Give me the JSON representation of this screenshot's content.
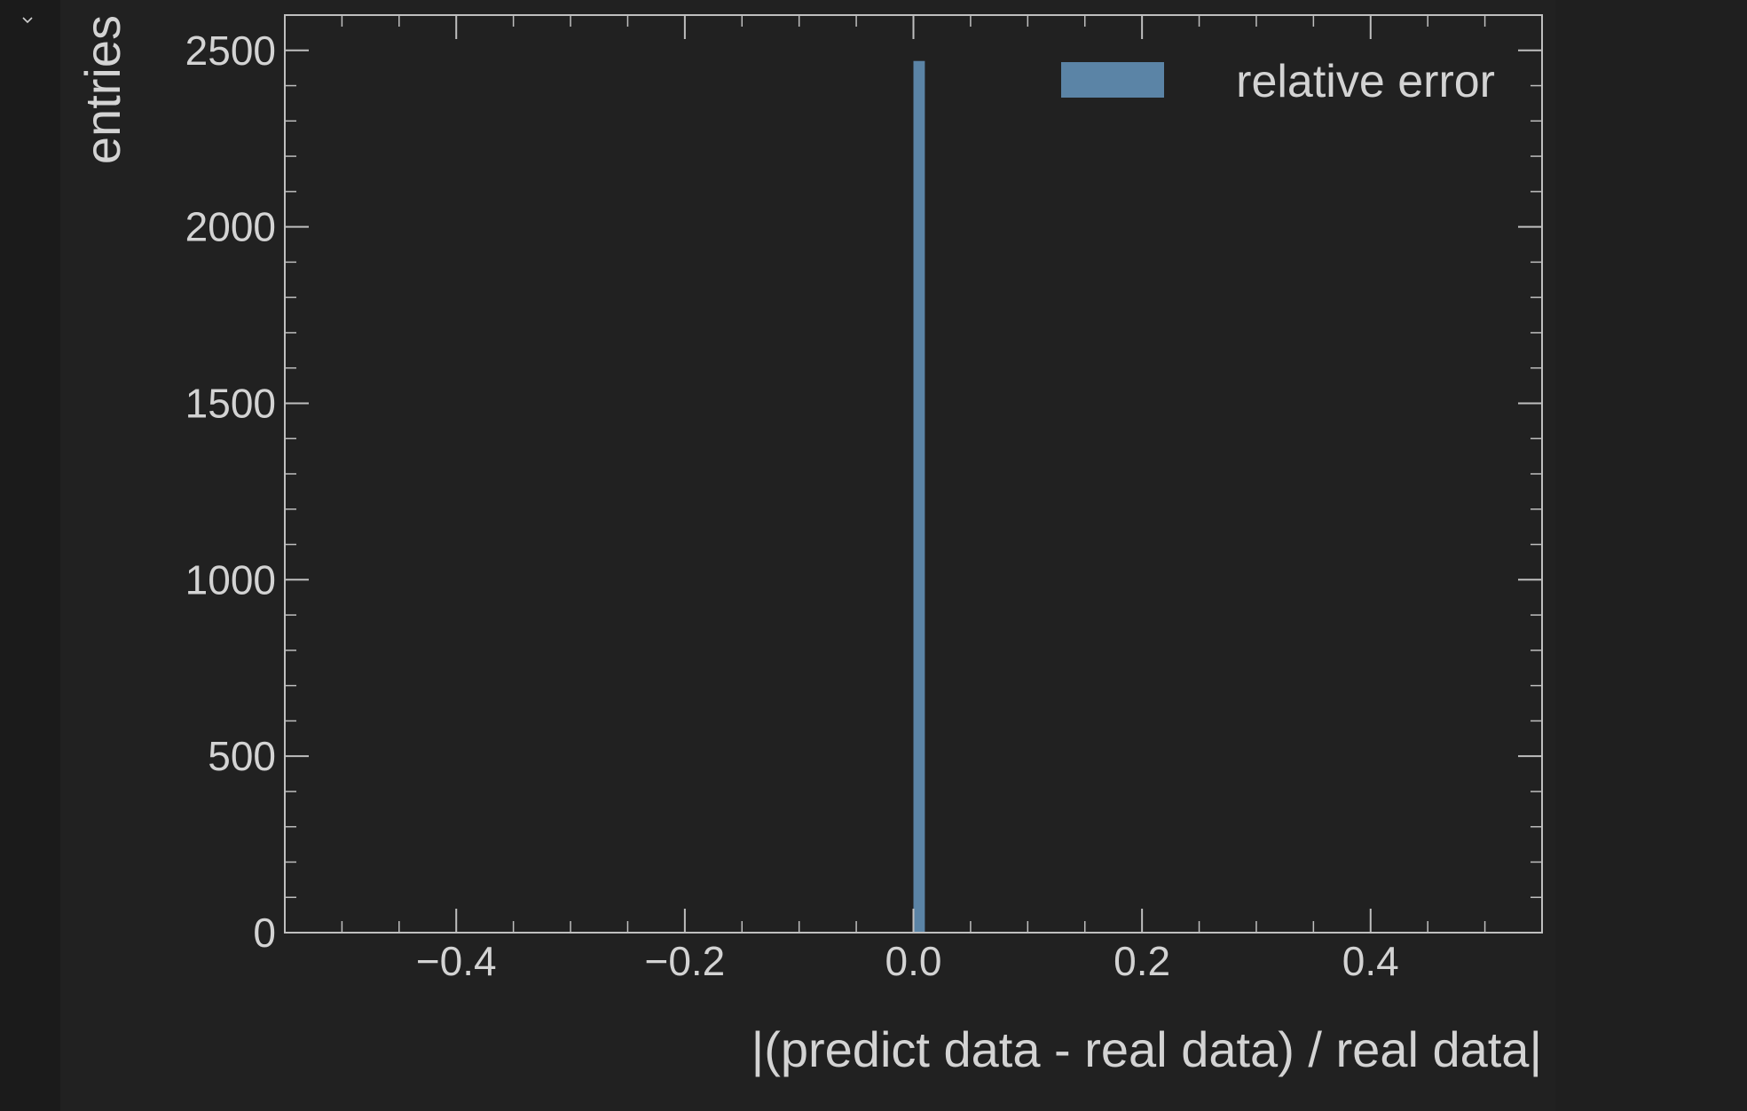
{
  "cell": {
    "collapse_icon": "chevron-down-icon"
  },
  "colors": {
    "background": "#212121",
    "gutter": "#1b1b1b",
    "axes": "#bfbfbf",
    "text": "#d3d3d3",
    "bar": "#5b84a6"
  },
  "chart_data": {
    "type": "bar",
    "title": "",
    "xlabel": "|(predict data - real data) / real data|",
    "ylabel": "entries",
    "xlim": [
      -0.55,
      0.55
    ],
    "ylim": [
      0,
      2600
    ],
    "x_ticks": [
      -0.4,
      -0.2,
      0.0,
      0.2,
      0.4
    ],
    "x_tick_labels": [
      "−0.4",
      "−0.2",
      "0.0",
      "0.2",
      "0.4"
    ],
    "y_ticks": [
      0,
      500,
      1000,
      1500,
      2000,
      2500
    ],
    "y_tick_labels": [
      "0",
      "500",
      "1000",
      "1500",
      "2000",
      "2500"
    ],
    "grid": false,
    "legend_position": "top-right",
    "series": [
      {
        "name": "relative error",
        "color": "#5b84a6",
        "bins": [
          {
            "x0": 0.0,
            "x1": 0.01,
            "value": 2470
          }
        ]
      }
    ]
  }
}
